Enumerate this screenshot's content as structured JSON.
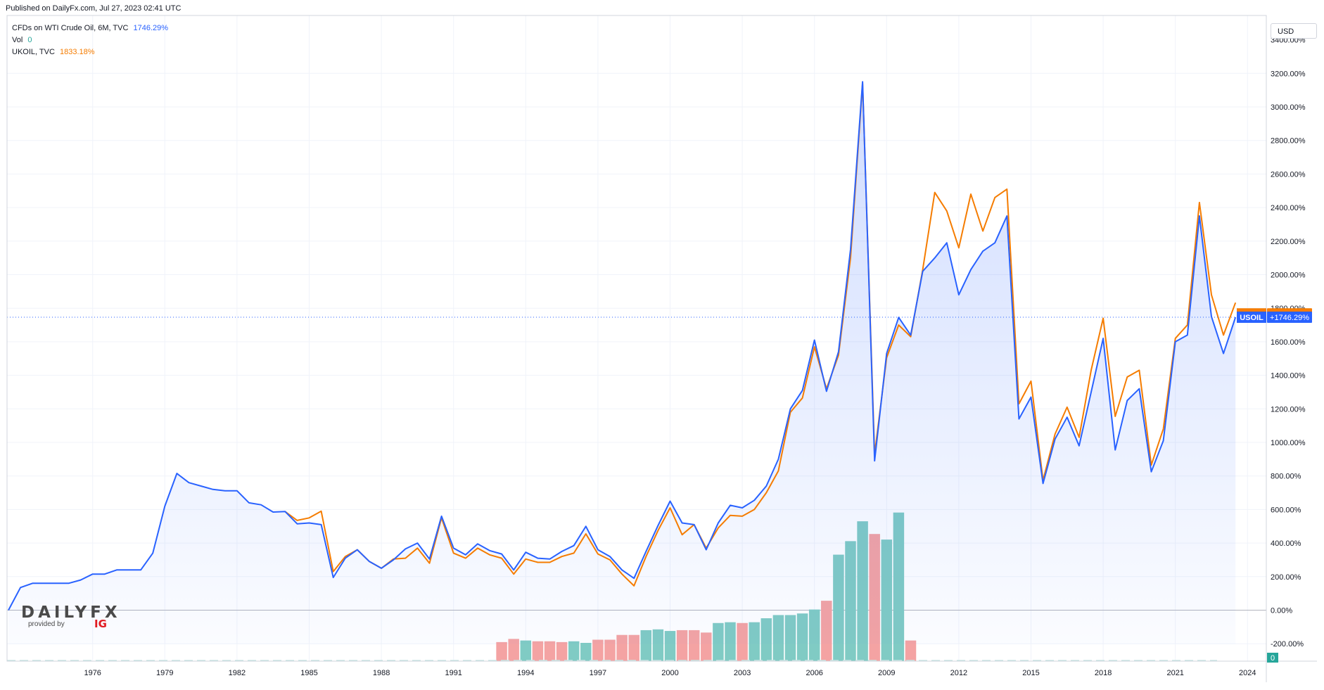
{
  "header": {
    "published": "Published on DailyFx.com, Jul 27, 2023 02:41 UTC",
    "currency": "USD"
  },
  "legend": [
    {
      "name": "CFDs on WTI Crude Oil, 6M, TVC",
      "value": "1746.29%",
      "color": "#2962ff"
    },
    {
      "name": "Vol",
      "value": "0",
      "color": "#26a69a"
    },
    {
      "name": "UKOIL, TVC",
      "value": "1833.18%",
      "color": "#f57c00"
    }
  ],
  "logo": {
    "main": "DAILYFX",
    "sub": "provided by",
    "brand": "IG"
  },
  "chart_data": {
    "type": "line",
    "scale": "percent-change",
    "grid": true,
    "xlim": [
      1972.5,
      2024.8
    ],
    "ylim": [
      -300,
      3400
    ],
    "x_ticks": [
      1976,
      1979,
      1982,
      1985,
      1988,
      1991,
      1994,
      1997,
      2000,
      2003,
      2006,
      2009,
      2012,
      2015,
      2018,
      2021,
      2024
    ],
    "y_ticks": [
      -200,
      0,
      200,
      400,
      600,
      800,
      1000,
      1200,
      1400,
      1600,
      1800,
      2000,
      2200,
      2400,
      2600,
      2800,
      3000,
      3200
    ],
    "y_tick_suffix": "%",
    "top_partial_tick": "3400.00%",
    "series": [
      {
        "name": "USOIL",
        "color": "#2962ff",
        "last_label": "+1746.29%",
        "points": [
          [
            1972.5,
            0
          ],
          [
            1973.0,
            135
          ],
          [
            1973.5,
            160
          ],
          [
            1974.0,
            160
          ],
          [
            1974.5,
            160
          ],
          [
            1975.0,
            160
          ],
          [
            1975.5,
            180
          ],
          [
            1976.0,
            215
          ],
          [
            1976.5,
            215
          ],
          [
            1977.0,
            240
          ],
          [
            1977.5,
            240
          ],
          [
            1978.0,
            240
          ],
          [
            1978.5,
            340
          ],
          [
            1979.0,
            620
          ],
          [
            1979.5,
            815
          ],
          [
            1980.0,
            760
          ],
          [
            1980.5,
            740
          ],
          [
            1981.0,
            720
          ],
          [
            1981.5,
            712
          ],
          [
            1982.0,
            712
          ],
          [
            1982.5,
            640
          ],
          [
            1983.0,
            628
          ],
          [
            1983.5,
            585
          ],
          [
            1984.0,
            588
          ],
          [
            1984.5,
            515
          ],
          [
            1985.0,
            520
          ],
          [
            1985.5,
            510
          ],
          [
            1986.0,
            195
          ],
          [
            1986.5,
            310
          ],
          [
            1987.0,
            360
          ],
          [
            1987.5,
            290
          ],
          [
            1988.0,
            250
          ],
          [
            1988.5,
            300
          ],
          [
            1989.0,
            365
          ],
          [
            1989.5,
            400
          ],
          [
            1990.0,
            305
          ],
          [
            1990.5,
            560
          ],
          [
            1991.0,
            370
          ],
          [
            1991.5,
            330
          ],
          [
            1992.0,
            395
          ],
          [
            1992.5,
            355
          ],
          [
            1993.0,
            335
          ],
          [
            1993.5,
            240
          ],
          [
            1994.0,
            345
          ],
          [
            1994.5,
            310
          ],
          [
            1995.0,
            305
          ],
          [
            1995.5,
            350
          ],
          [
            1996.0,
            385
          ],
          [
            1996.5,
            500
          ],
          [
            1997.0,
            360
          ],
          [
            1997.5,
            320
          ],
          [
            1998.0,
            240
          ],
          [
            1998.5,
            190
          ],
          [
            1999.0,
            350
          ],
          [
            1999.5,
            505
          ],
          [
            2000.0,
            650
          ],
          [
            2000.5,
            520
          ],
          [
            2001.0,
            510
          ],
          [
            2001.5,
            360
          ],
          [
            2002.0,
            520
          ],
          [
            2002.5,
            625
          ],
          [
            2003.0,
            610
          ],
          [
            2003.5,
            655
          ],
          [
            2004.0,
            740
          ],
          [
            2004.5,
            900
          ],
          [
            2005.0,
            1200
          ],
          [
            2005.5,
            1310
          ],
          [
            2006.0,
            1610
          ],
          [
            2006.5,
            1305
          ],
          [
            2007.0,
            1540
          ],
          [
            2007.5,
            2150
          ],
          [
            2008.0,
            3150
          ],
          [
            2008.5,
            890
          ],
          [
            2009.0,
            1530
          ],
          [
            2009.5,
            1745
          ],
          [
            2010.0,
            1640
          ],
          [
            2010.5,
            2020
          ],
          [
            2011.0,
            2100
          ],
          [
            2011.5,
            2190
          ],
          [
            2012.0,
            1880
          ],
          [
            2012.5,
            2030
          ],
          [
            2013.0,
            2140
          ],
          [
            2013.5,
            2190
          ],
          [
            2014.0,
            2350
          ],
          [
            2014.5,
            1140
          ],
          [
            2015.0,
            1270
          ],
          [
            2015.5,
            755
          ],
          [
            2016.0,
            1020
          ],
          [
            2016.5,
            1150
          ],
          [
            2017.0,
            980
          ],
          [
            2017.5,
            1300
          ],
          [
            2018.0,
            1620
          ],
          [
            2018.5,
            955
          ],
          [
            2019.0,
            1250
          ],
          [
            2019.5,
            1320
          ],
          [
            2020.0,
            825
          ],
          [
            2020.5,
            1010
          ],
          [
            2021.0,
            1600
          ],
          [
            2021.5,
            1640
          ],
          [
            2022.0,
            2350
          ],
          [
            2022.5,
            1750
          ],
          [
            2023.0,
            1530
          ],
          [
            2023.5,
            1746.29
          ]
        ]
      },
      {
        "name": "UKOIL",
        "color": "#f57c00",
        "last_label": "+1833.18%",
        "points": [
          [
            1984.0,
            588
          ],
          [
            1984.5,
            535
          ],
          [
            1985.0,
            550
          ],
          [
            1985.5,
            590
          ],
          [
            1986.0,
            230
          ],
          [
            1986.5,
            320
          ],
          [
            1987.0,
            360
          ],
          [
            1987.5,
            290
          ],
          [
            1988.0,
            250
          ],
          [
            1988.5,
            305
          ],
          [
            1989.0,
            310
          ],
          [
            1989.5,
            370
          ],
          [
            1990.0,
            280
          ],
          [
            1990.5,
            550
          ],
          [
            1991.0,
            340
          ],
          [
            1991.5,
            310
          ],
          [
            1992.0,
            370
          ],
          [
            1992.5,
            330
          ],
          [
            1993.0,
            310
          ],
          [
            1993.5,
            215
          ],
          [
            1994.0,
            305
          ],
          [
            1994.5,
            285
          ],
          [
            1995.0,
            285
          ],
          [
            1995.5,
            320
          ],
          [
            1996.0,
            340
          ],
          [
            1996.5,
            455
          ],
          [
            1997.0,
            335
          ],
          [
            1997.5,
            300
          ],
          [
            1998.0,
            215
          ],
          [
            1998.5,
            145
          ],
          [
            1999.0,
            320
          ],
          [
            1999.5,
            475
          ],
          [
            2000.0,
            610
          ],
          [
            2000.5,
            450
          ],
          [
            2001.0,
            510
          ],
          [
            2001.5,
            370
          ],
          [
            2002.0,
            490
          ],
          [
            2002.5,
            565
          ],
          [
            2003.0,
            560
          ],
          [
            2003.5,
            600
          ],
          [
            2004.0,
            700
          ],
          [
            2004.5,
            830
          ],
          [
            2005.0,
            1180
          ],
          [
            2005.5,
            1265
          ],
          [
            2006.0,
            1570
          ],
          [
            2006.5,
            1320
          ],
          [
            2007.0,
            1520
          ],
          [
            2007.5,
            2100
          ],
          [
            2008.0,
            3140
          ],
          [
            2008.5,
            930
          ],
          [
            2009.0,
            1505
          ],
          [
            2009.5,
            1700
          ],
          [
            2010.0,
            1630
          ],
          [
            2010.5,
            2030
          ],
          [
            2011.0,
            2490
          ],
          [
            2011.5,
            2380
          ],
          [
            2012.0,
            2160
          ],
          [
            2012.5,
            2480
          ],
          [
            2013.0,
            2260
          ],
          [
            2013.5,
            2460
          ],
          [
            2014.0,
            2510
          ],
          [
            2014.5,
            1230
          ],
          [
            2015.0,
            1365
          ],
          [
            2015.5,
            775
          ],
          [
            2016.0,
            1050
          ],
          [
            2016.5,
            1210
          ],
          [
            2017.0,
            1030
          ],
          [
            2017.5,
            1430
          ],
          [
            2018.0,
            1740
          ],
          [
            2018.5,
            1155
          ],
          [
            2019.0,
            1390
          ],
          [
            2019.5,
            1430
          ],
          [
            2020.0,
            865
          ],
          [
            2020.5,
            1080
          ],
          [
            2021.0,
            1620
          ],
          [
            2021.5,
            1700
          ],
          [
            2022.0,
            2430
          ],
          [
            2022.5,
            1880
          ],
          [
            2023.0,
            1640
          ],
          [
            2023.5,
            1833.18
          ]
        ]
      }
    ],
    "volume": {
      "name": "Vol",
      "up_color": "#80cbc4",
      "down_color": "#f4a3a3",
      "bars": [
        [
          1993.0,
          120,
          "down"
        ],
        [
          1993.5,
          140,
          "down"
        ],
        [
          1994.0,
          130,
          "up"
        ],
        [
          1994.5,
          125,
          "down"
        ],
        [
          1995.0,
          125,
          "down"
        ],
        [
          1995.5,
          120,
          "down"
        ],
        [
          1996.0,
          125,
          "up"
        ],
        [
          1996.5,
          115,
          "up"
        ],
        [
          1997.0,
          135,
          "down"
        ],
        [
          1997.5,
          135,
          "down"
        ],
        [
          1998.0,
          165,
          "down"
        ],
        [
          1998.5,
          165,
          "down"
        ],
        [
          1999.0,
          195,
          "up"
        ],
        [
          1999.5,
          200,
          "up"
        ],
        [
          2000.0,
          190,
          "up"
        ],
        [
          2000.5,
          195,
          "down"
        ],
        [
          2001.0,
          195,
          "down"
        ],
        [
          2001.5,
          180,
          "down"
        ],
        [
          2002.0,
          240,
          "up"
        ],
        [
          2002.5,
          245,
          "up"
        ],
        [
          2003.0,
          240,
          "down"
        ],
        [
          2003.5,
          245,
          "up"
        ],
        [
          2004.0,
          270,
          "up"
        ],
        [
          2004.5,
          290,
          "up"
        ],
        [
          2005.0,
          290,
          "up"
        ],
        [
          2005.5,
          300,
          "up"
        ],
        [
          2006.0,
          325,
          "up"
        ],
        [
          2006.5,
          380,
          "down"
        ],
        [
          2007.0,
          670,
          "up"
        ],
        [
          2007.5,
          755,
          "up"
        ],
        [
          2008.0,
          880,
          "up"
        ],
        [
          2008.5,
          800,
          "down"
        ],
        [
          2009.0,
          765,
          "up"
        ],
        [
          2009.5,
          935,
          "up"
        ],
        [
          2010.0,
          130,
          "down"
        ]
      ],
      "last_label": "0"
    }
  }
}
